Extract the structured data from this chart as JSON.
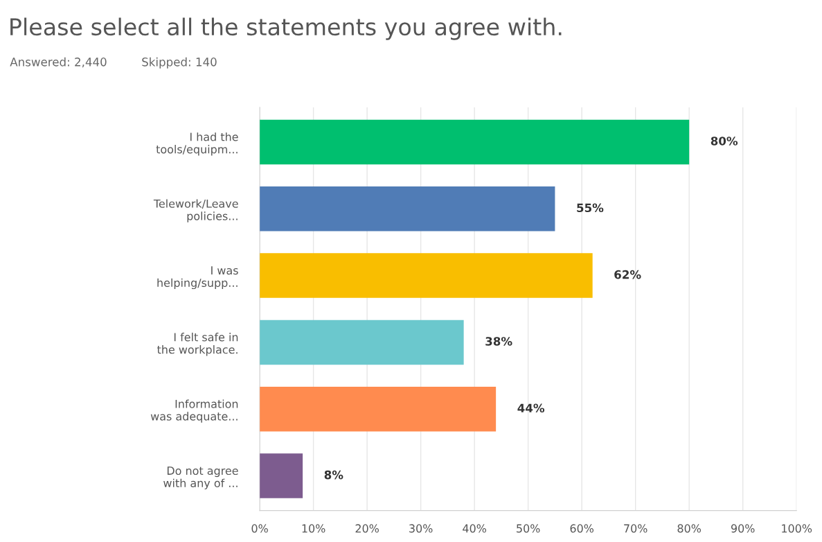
{
  "chart_data": {
    "type": "bar",
    "orientation": "horizontal",
    "title": "Please select all the statements you agree with.",
    "annotations": [
      "Answered: 2,440",
      "Skipped: 140"
    ],
    "categories": [
      "I had the\ntools/equipm...",
      "Telework/Leave\npolicies...",
      "I was\nhelping/supp...",
      "I felt safe in\nthe workplace.",
      "Information\nwas adequate...",
      "Do not agree\nwith any of ..."
    ],
    "values": [
      80,
      55,
      62,
      38,
      44,
      8
    ],
    "value_labels": [
      "80%",
      "55%",
      "62%",
      "38%",
      "44%",
      "8%"
    ],
    "colors": [
      "#00bf6f",
      "#507cb6",
      "#f9be00",
      "#6bc8cd",
      "#ff8b4f",
      "#7d5c8f"
    ],
    "xlim": [
      0,
      100
    ],
    "xticks": [
      {
        "value": 0,
        "label": "0%"
      },
      {
        "value": 10,
        "label": "10%"
      },
      {
        "value": 20,
        "label": "20%"
      },
      {
        "value": 30,
        "label": "30%"
      },
      {
        "value": 40,
        "label": "40%"
      },
      {
        "value": 50,
        "label": "50%"
      },
      {
        "value": 60,
        "label": "60%"
      },
      {
        "value": 70,
        "label": "70%"
      },
      {
        "value": 80,
        "label": "80%"
      },
      {
        "value": 90,
        "label": "90%"
      },
      {
        "value": 100,
        "label": "100%"
      }
    ],
    "grid": "x",
    "legend": false
  }
}
